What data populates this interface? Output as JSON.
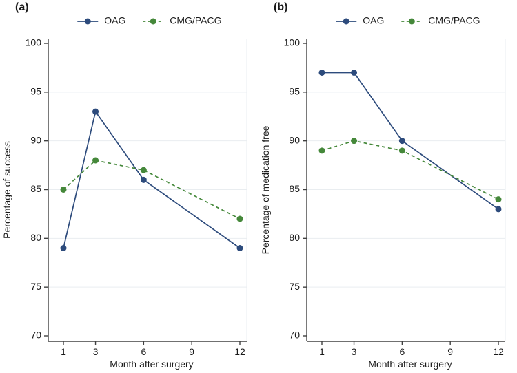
{
  "chart_data": [
    {
      "type": "line",
      "panel_label": "(a)",
      "xlabel": "Month after surgery",
      "ylabel": "Percentage of success",
      "x": [
        1,
        3,
        6,
        12
      ],
      "xticks": [
        1,
        3,
        6,
        9,
        12
      ],
      "yticks": [
        70,
        75,
        80,
        85,
        90,
        95,
        100
      ],
      "ylim": [
        70,
        100
      ],
      "grid": "horizontal",
      "legend_position": "top",
      "series": [
        {
          "name": "OAG",
          "values": [
            79,
            93,
            86,
            79
          ],
          "color": "#2d4b7c",
          "line_style": "solid",
          "marker": "circle"
        },
        {
          "name": "CMG/PACG",
          "values": [
            85,
            88,
            87,
            82
          ],
          "color": "#45883a",
          "line_style": "dashed",
          "marker": "circle"
        }
      ]
    },
    {
      "type": "line",
      "panel_label": "(b)",
      "xlabel": "Month after surgery",
      "ylabel": "Percentage of medication free",
      "x": [
        1,
        3,
        6,
        12
      ],
      "xticks": [
        1,
        3,
        6,
        9,
        12
      ],
      "yticks": [
        70,
        75,
        80,
        85,
        90,
        95,
        100
      ],
      "ylim": [
        70,
        100
      ],
      "grid": "horizontal",
      "legend_position": "top",
      "series": [
        {
          "name": "OAG",
          "values": [
            97,
            97,
            90,
            83
          ],
          "color": "#2d4b7c",
          "line_style": "solid",
          "marker": "circle"
        },
        {
          "name": "CMG/PACG",
          "values": [
            89,
            90,
            89,
            84
          ],
          "color": "#45883a",
          "line_style": "dashed",
          "marker": "circle"
        }
      ]
    }
  ]
}
